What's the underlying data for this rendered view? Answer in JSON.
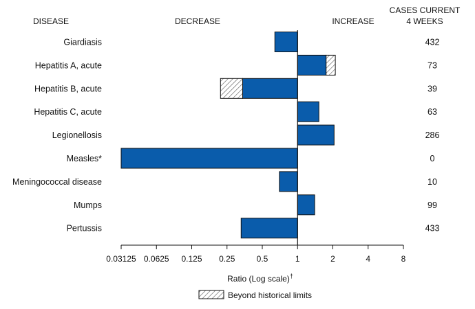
{
  "chart_data": {
    "type": "bar",
    "orientation": "horizontal",
    "headers": {
      "disease": "DISEASE",
      "decrease": "DECREASE",
      "increase": "INCREASE",
      "cases_line1": "CASES CURRENT",
      "cases_line2": "4 WEEKS"
    },
    "categories": [
      "Giardiasis",
      "Hepatitis A, acute",
      "Hepatitis B, acute",
      "Hepatitis C, acute",
      "Legionellosis",
      "Measles*",
      "Meningococcal disease",
      "Mumps",
      "Pertussis"
    ],
    "values": [
      0.64,
      1.75,
      0.34,
      1.52,
      2.05,
      0.03125,
      0.7,
      1.4,
      0.33
    ],
    "beyond_limits_to": [
      null,
      2.1,
      0.22,
      null,
      null,
      null,
      null,
      null,
      null
    ],
    "cases_current_4_weeks": [
      "432",
      "73",
      "39",
      "63",
      "286",
      "0",
      "10",
      "99",
      "433"
    ],
    "x_ticks": [
      0.03125,
      0.0625,
      0.125,
      0.25,
      0.5,
      1,
      2,
      4,
      8
    ],
    "x_tick_labels": [
      "0.03125",
      "0.0625",
      "0.125",
      "0.25",
      "0.5",
      "1",
      "2",
      "4",
      "8"
    ],
    "xlim": [
      0.03125,
      8
    ],
    "xscale": "log2",
    "xlabel": "Ratio (Log scale)",
    "xlabel_superscript": "†",
    "legend": {
      "label": "Beyond historical limits",
      "position": "bottom-center"
    },
    "colors": {
      "bar": "#0a5cab",
      "bar_stroke": "#111111",
      "hatch": "#555555"
    }
  }
}
